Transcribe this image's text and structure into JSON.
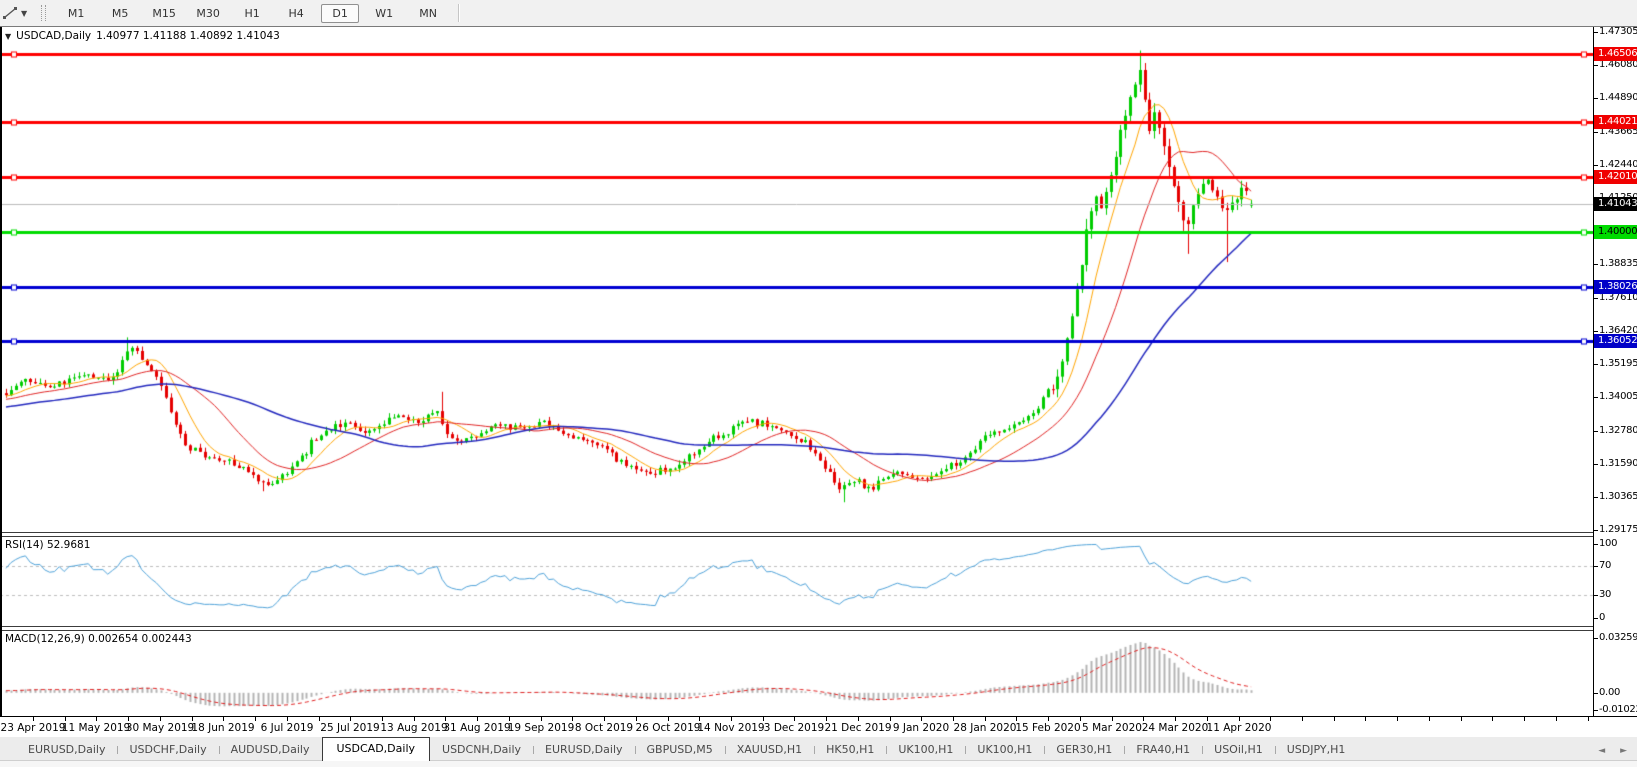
{
  "toolbar": {
    "cursor_tool": "line-studies",
    "timeframes": [
      {
        "label": "M1",
        "active": false
      },
      {
        "label": "M5",
        "active": false
      },
      {
        "label": "M15",
        "active": false
      },
      {
        "label": "M30",
        "active": false
      },
      {
        "label": "H1",
        "active": false
      },
      {
        "label": "H4",
        "active": false
      },
      {
        "label": "D1",
        "active": true
      },
      {
        "label": "W1",
        "active": false
      },
      {
        "label": "MN",
        "active": false
      }
    ]
  },
  "chart": {
    "title": {
      "symbol": "USDCAD,Daily",
      "ohlc_text": "1.40977 1.41188 1.40892 1.41043"
    }
  },
  "chart_data": {
    "type": "candlestick",
    "symbol": "USDCAD",
    "timeframe": "Daily",
    "ohlc_current": {
      "open": 1.40977,
      "high": 1.41188,
      "low": 1.40892,
      "close": 1.41043
    },
    "price_axis": {
      "ylim": [
        1.290971,
        1.474761
      ],
      "ticks": [
        "1.47305",
        "1.46080",
        "1.44890",
        "1.43665",
        "1.42440",
        "1.41250",
        "1.38835",
        "1.37610",
        "1.36420",
        "1.35195",
        "1.34005",
        "1.32780",
        "1.31590",
        "1.30365",
        "1.29175"
      ]
    },
    "hlines": [
      {
        "price": 1.46506,
        "label": "1.46506",
        "color": "#FF0000",
        "badge_bg": "#F00000",
        "text_color": "#FFFFFF",
        "width": 3
      },
      {
        "price": 1.44021,
        "label": "1.44021",
        "color": "#FF0000",
        "badge_bg": "#F00000",
        "text_color": "#FFFFFF",
        "width": 3
      },
      {
        "price": 1.4201,
        "label": "1.42010",
        "color": "#FF0000",
        "badge_bg": "#F00000",
        "text_color": "#FFFFFF",
        "width": 3
      },
      {
        "price": 1.4,
        "label": "1.40000",
        "color": "#00DC00",
        "badge_bg": "#00DC00",
        "text_color": "#000000",
        "width": 3
      },
      {
        "price": 1.38026,
        "label": "1.38026",
        "color": "#0000D2",
        "badge_bg": "#0000C8",
        "text_color": "#FFFFFF",
        "width": 3
      },
      {
        "price": 1.36052,
        "label": "1.36052",
        "color": "#0000D2",
        "badge_bg": "#0000C8",
        "text_color": "#FFFFFF",
        "width": 3
      }
    ],
    "current_price": {
      "price": 1.41043,
      "label": "1.41043",
      "line_color": "#BABABA",
      "badge_bg": "#000000",
      "text_color": "#FFFFFF"
    },
    "candle_colors": {
      "up": "#00CC00",
      "down": "#E50000"
    },
    "moving_averages": [
      {
        "period": 8,
        "color": "#FFA500",
        "width": 1
      },
      {
        "period": 20,
        "color": "#E02424",
        "width": 1
      },
      {
        "period": 50,
        "color": "#2328BE",
        "width": 1.5
      }
    ],
    "bars": {
      "first_x": 6,
      "spacing": 4.845,
      "count": 258,
      "seed": 20200424,
      "vol_zones": [
        [
          0,
          0.0021
        ],
        [
          1048,
          0.0048
        ],
        [
          1190,
          0.0034
        ]
      ],
      "wick_overrides": [
        [
          128,
          "high",
          1.3618
        ],
        [
          265,
          "low",
          1.3058
        ],
        [
          440,
          "high",
          1.342
        ],
        [
          842,
          "low",
          1.3018
        ],
        [
          1141,
          "high",
          1.4662
        ],
        [
          1186,
          "low",
          1.3922
        ],
        [
          1229,
          "low",
          1.3892
        ]
      ]
    },
    "anchors": [
      [
        6,
        1.341
      ],
      [
        16,
        1.345
      ],
      [
        25,
        1.347
      ],
      [
        35,
        1.3455
      ],
      [
        45,
        1.3445
      ],
      [
        55,
        1.344
      ],
      [
        65,
        1.3455
      ],
      [
        75,
        1.347
      ],
      [
        85,
        1.348
      ],
      [
        95,
        1.347
      ],
      [
        105,
        1.3455
      ],
      [
        112,
        1.3465
      ],
      [
        120,
        1.352
      ],
      [
        128,
        1.359
      ],
      [
        135,
        1.356
      ],
      [
        142,
        1.354
      ],
      [
        150,
        1.3505
      ],
      [
        158,
        1.347
      ],
      [
        165,
        1.341
      ],
      [
        172,
        1.333
      ],
      [
        180,
        1.327
      ],
      [
        188,
        1.322
      ],
      [
        196,
        1.32
      ],
      [
        205,
        1.3185
      ],
      [
        215,
        1.3175
      ],
      [
        225,
        1.3165
      ],
      [
        235,
        1.316
      ],
      [
        245,
        1.313
      ],
      [
        255,
        1.3105
      ],
      [
        262,
        1.309
      ],
      [
        270,
        1.308
      ],
      [
        278,
        1.31
      ],
      [
        288,
        1.313
      ],
      [
        298,
        1.317
      ],
      [
        308,
        1.3215
      ],
      [
        315,
        1.324
      ],
      [
        325,
        1.3275
      ],
      [
        332,
        1.329
      ],
      [
        338,
        1.33
      ],
      [
        345,
        1.331
      ],
      [
        352,
        1.331
      ],
      [
        362,
        1.329
      ],
      [
        372,
        1.327
      ],
      [
        382,
        1.33
      ],
      [
        390,
        1.333
      ],
      [
        398,
        1.3345
      ],
      [
        408,
        1.332
      ],
      [
        418,
        1.3305
      ],
      [
        428,
        1.333
      ],
      [
        437,
        1.335
      ],
      [
        446,
        1.328
      ],
      [
        456,
        1.323
      ],
      [
        465,
        1.325
      ],
      [
        478,
        1.327
      ],
      [
        490,
        1.3285
      ],
      [
        500,
        1.33
      ],
      [
        512,
        1.3295
      ],
      [
        522,
        1.329
      ],
      [
        532,
        1.33
      ],
      [
        545,
        1.331
      ],
      [
        555,
        1.329
      ],
      [
        562,
        1.327
      ],
      [
        570,
        1.326
      ],
      [
        580,
        1.325
      ],
      [
        590,
        1.324
      ],
      [
        602,
        1.323
      ],
      [
        612,
        1.319
      ],
      [
        620,
        1.316
      ],
      [
        628,
        1.315
      ],
      [
        638,
        1.3135
      ],
      [
        648,
        1.3128
      ],
      [
        656,
        1.3125
      ],
      [
        665,
        1.314
      ],
      [
        674,
        1.315
      ],
      [
        682,
        1.3165
      ],
      [
        692,
        1.3195
      ],
      [
        700,
        1.3215
      ],
      [
        708,
        1.3235
      ],
      [
        716,
        1.3255
      ],
      [
        724,
        1.327
      ],
      [
        732,
        1.3285
      ],
      [
        739,
        1.3305
      ],
      [
        746,
        1.332
      ],
      [
        755,
        1.331
      ],
      [
        768,
        1.33
      ],
      [
        778,
        1.3285
      ],
      [
        788,
        1.327
      ],
      [
        798,
        1.325
      ],
      [
        808,
        1.3225
      ],
      [
        818,
        1.318
      ],
      [
        826,
        1.314
      ],
      [
        834,
        1.31
      ],
      [
        840,
        1.307
      ],
      [
        848,
        1.3085
      ],
      [
        856,
        1.31
      ],
      [
        864,
        1.3075
      ],
      [
        872,
        1.306
      ],
      [
        880,
        1.3085
      ],
      [
        888,
        1.3115
      ],
      [
        897,
        1.3125
      ],
      [
        905,
        1.312
      ],
      [
        922,
        1.31
      ],
      [
        940,
        1.313
      ],
      [
        958,
        1.3165
      ],
      [
        968,
        1.32
      ],
      [
        975,
        1.3225
      ],
      [
        983,
        1.3255
      ],
      [
        992,
        1.3265
      ],
      [
        1000,
        1.3275
      ],
      [
        1008,
        1.3285
      ],
      [
        1016,
        1.33
      ],
      [
        1024,
        1.331
      ],
      [
        1032,
        1.333
      ],
      [
        1038,
        1.336
      ],
      [
        1044,
        1.34
      ],
      [
        1048,
        1.343
      ],
      [
        1052,
        1.342
      ],
      [
        1058,
        1.347
      ],
      [
        1064,
        1.356
      ],
      [
        1070,
        1.365
      ],
      [
        1076,
        1.375
      ],
      [
        1082,
        1.39
      ],
      [
        1088,
        1.403
      ],
      [
        1094,
        1.414
      ],
      [
        1100,
        1.408
      ],
      [
        1106,
        1.416
      ],
      [
        1112,
        1.424
      ],
      [
        1118,
        1.433
      ],
      [
        1124,
        1.442
      ],
      [
        1130,
        1.448
      ],
      [
        1136,
        1.452
      ],
      [
        1141,
        1.457
      ],
      [
        1145,
        1.445
      ],
      [
        1150,
        1.439
      ],
      [
        1155,
        1.447
      ],
      [
        1160,
        1.439
      ],
      [
        1166,
        1.427
      ],
      [
        1172,
        1.417
      ],
      [
        1178,
        1.412
      ],
      [
        1184,
        1.404
      ],
      [
        1190,
        1.407
      ],
      [
        1196,
        1.411
      ],
      [
        1202,
        1.416
      ],
      [
        1208,
        1.419
      ],
      [
        1214,
        1.416
      ],
      [
        1220,
        1.411
      ],
      [
        1226,
        1.407
      ],
      [
        1232,
        1.409
      ],
      [
        1238,
        1.414
      ],
      [
        1244,
        1.417
      ],
      [
        1249,
        1.413
      ],
      [
        1252,
        1.4104
      ]
    ],
    "rsi": {
      "label": "RSI(14) 52.9681",
      "period": 14,
      "current": 52.9681,
      "levels": [
        70,
        30
      ],
      "axis": [
        "100",
        "70",
        "30",
        "0"
      ],
      "color": "#4DA1D8",
      "level_color": "#BDBDBD"
    },
    "macd": {
      "label": "MACD(12,26,9) 0.002654 0.002443",
      "fast": 12,
      "slow": 26,
      "signal_period": 9,
      "macd_value": 0.002654,
      "signal_value": 0.002443,
      "axis": [
        "0.032595",
        "0.00",
        "-0.010227"
      ],
      "axis_values": [
        0.032595,
        0,
        -0.010227
      ],
      "hist_color": "#B4B4B4",
      "signal_color": "#E02020"
    },
    "date_axis": {
      "first_center_x": 33,
      "spacing_px": 63.45,
      "labels": [
        "23 Apr 2019",
        "11 May 2019",
        "30 May 2019",
        "18 Jun 2019",
        "6 Jul 2019",
        "25 Jul 2019",
        "13 Aug 2019",
        "31 Aug 2019",
        "19 Sep 2019",
        "8 Oct 2019",
        "26 Oct 2019",
        "14 Nov 2019",
        "3 Dec 2019",
        "21 Dec 2019",
        "9 Jan 2020",
        "28 Jan 2020",
        "15 Feb 2020",
        "5 Mar 2020",
        "24 Mar 2020",
        "11 Apr 2020"
      ]
    }
  },
  "tabs": {
    "items": [
      {
        "label": "EURUSD,Daily",
        "active": false
      },
      {
        "label": "USDCHF,Daily",
        "active": false
      },
      {
        "label": "AUDUSD,Daily",
        "active": false
      },
      {
        "label": "USDCAD,Daily",
        "active": true
      },
      {
        "label": "USDCNH,Daily",
        "active": false
      },
      {
        "label": "EURUSD,Daily",
        "active": false
      },
      {
        "label": "GBPUSD,M5",
        "active": false
      },
      {
        "label": "XAUUSD,H1",
        "active": false
      },
      {
        "label": "HK50,H1",
        "active": false
      },
      {
        "label": "UK100,H1",
        "active": false
      },
      {
        "label": "UK100,H1",
        "active": false
      },
      {
        "label": "GER30,H1",
        "active": false
      },
      {
        "label": "FRA40,H1",
        "active": false
      },
      {
        "label": "USOil,H1",
        "active": false
      },
      {
        "label": "USDJPY,H1",
        "active": false
      }
    ],
    "nav_left": "◄",
    "nav_right": "►"
  }
}
